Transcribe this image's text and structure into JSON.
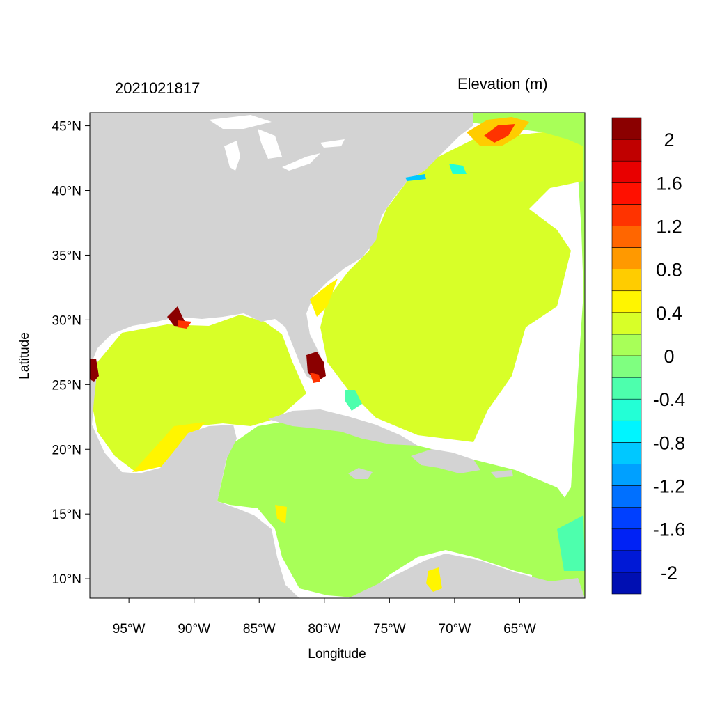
{
  "timestamp": "2021021817",
  "map": {
    "title_right": "Elevation (m)",
    "xlabel": "Longitude",
    "ylabel": "Latitude",
    "lon_range": [
      -98,
      -60
    ],
    "lat_range": [
      8.5,
      46
    ],
    "x_ticks": [
      {
        "value": -95,
        "label": "95°W"
      },
      {
        "value": -90,
        "label": "90°W"
      },
      {
        "value": -85,
        "label": "85°W"
      },
      {
        "value": -80,
        "label": "80°W"
      },
      {
        "value": -75,
        "label": "75°W"
      },
      {
        "value": -70,
        "label": "70°W"
      },
      {
        "value": -65,
        "label": "65°W"
      }
    ],
    "y_ticks": [
      {
        "value": 45,
        "label": "45°N"
      },
      {
        "value": 40,
        "label": "40°N"
      },
      {
        "value": 35,
        "label": "35°N"
      },
      {
        "value": 30,
        "label": "30°N"
      },
      {
        "value": 25,
        "label": "25°N"
      },
      {
        "value": 20,
        "label": "20°N"
      },
      {
        "value": 15,
        "label": "15°N"
      },
      {
        "value": 10,
        "label": "10°N"
      }
    ],
    "land_color": "#d3d3d3",
    "lake_color": "#ffffff"
  },
  "colorbar": {
    "colors": [
      "#000fb2",
      "#0019d6",
      "#0022f5",
      "#0040ff",
      "#0070ff",
      "#00a0ff",
      "#00c8ff",
      "#00f5ff",
      "#23ffd6",
      "#4dffad",
      "#7fff80",
      "#a8ff58",
      "#d8ff28",
      "#fff500",
      "#ffcc00",
      "#ff9900",
      "#ff6600",
      "#ff3300",
      "#ff1000",
      "#e80000",
      "#c00000",
      "#8b0000"
    ],
    "labels": [
      {
        "boundary": 20,
        "text": "2"
      },
      {
        "boundary": 18,
        "text": "1.6"
      },
      {
        "boundary": 16,
        "text": "1.2"
      },
      {
        "boundary": 14,
        "text": "0.8"
      },
      {
        "boundary": 12,
        "text": "0.4"
      },
      {
        "boundary": 10,
        "text": "0"
      },
      {
        "boundary": 8,
        "text": "-0.4"
      },
      {
        "boundary": 6,
        "text": "-0.8"
      },
      {
        "boundary": 4,
        "text": "-1.2"
      },
      {
        "boundary": 2,
        "text": "-1.6"
      },
      {
        "boundary": 0,
        "text": "-2"
      }
    ]
  },
  "field_colors": {
    "gulf": "#d8ff28",
    "atlantic_near": "#d8ff28",
    "atlantic_far": "#a8ff58",
    "caribbean": "#a8ff58",
    "shelf_high": "#fff500",
    "shelf_higher": "#ffcc00",
    "surge": "#8b0000",
    "surge_mid": "#ff3300",
    "negative": "#4dffad",
    "negative_strong": "#23ffd6",
    "negative_deep": "#00c8ff"
  }
}
